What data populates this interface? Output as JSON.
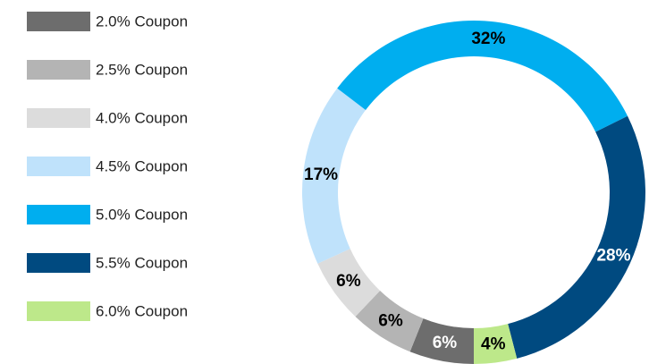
{
  "chart_data": {
    "type": "donut",
    "categories": [
      "2.0% Coupon",
      "2.5% Coupon",
      "4.0% Coupon",
      "4.5% Coupon",
      "5.0% Coupon",
      "5.5% Coupon",
      "6.0% Coupon"
    ],
    "values": [
      6,
      6,
      6,
      17,
      32,
      28,
      4
    ],
    "value_labels": [
      "6%",
      "6%",
      "6%",
      "17%",
      "32%",
      "28%",
      "4%"
    ],
    "colors": [
      "#6d6d6d",
      "#b4b4b4",
      "#dcdcdc",
      "#bfe2fb",
      "#00aeef",
      "#004a80",
      "#bde88a"
    ],
    "label_colors": [
      "#ffffff",
      "#000000",
      "#000000",
      "#000000",
      "#000000",
      "#ffffff",
      "#000000"
    ],
    "legend": "left"
  }
}
